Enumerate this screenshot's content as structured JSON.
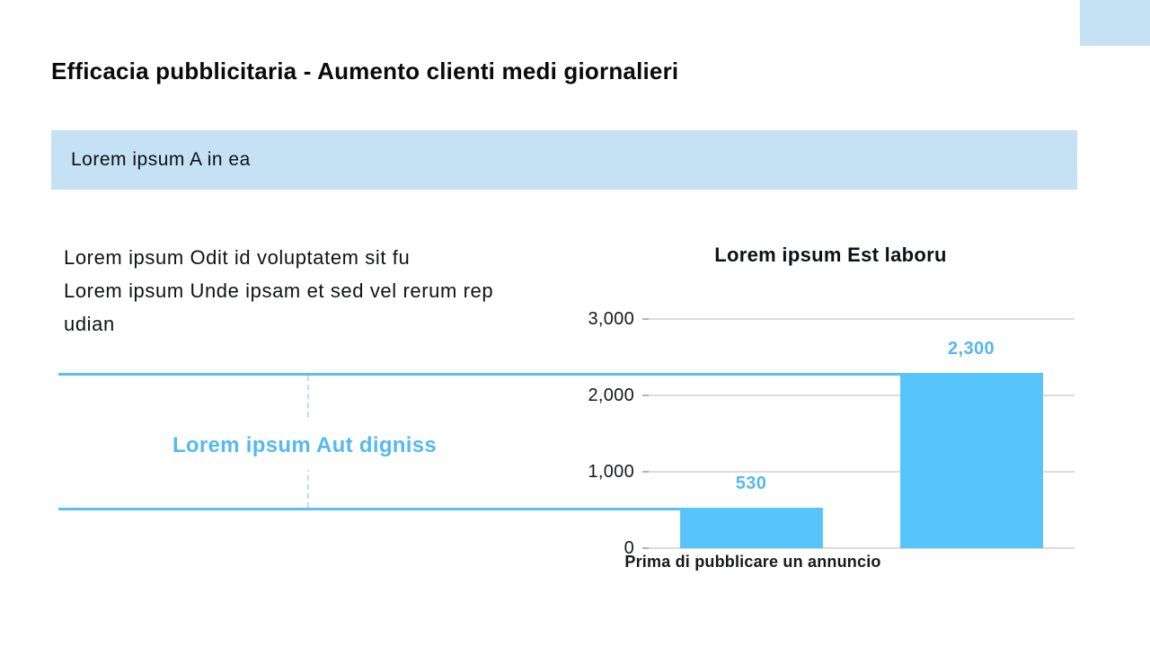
{
  "slide": {
    "title": "Efficacia pubblicitaria - Aumento clienti medi giornalieri",
    "banner": {
      "label": "Lorem ipsum A in ea",
      "bg_color": "#c5e2f4"
    },
    "corner_accent_color": "#c5e2f4",
    "description": {
      "lines": [
        "Lorem ipsum Odit id voluptatem sit fu",
        "Lorem ipsum Unde ipsam et sed vel rerum rep",
        "udian"
      ]
    },
    "annotation": {
      "label": "Lorem ipsum Aut digniss",
      "text_color": "#55baf0",
      "leader_line_color": "#5abff2",
      "dashed_line_color": "#b5e4f4"
    }
  },
  "chart_data": {
    "type": "bar",
    "title": "Lorem ipsum Est laboru",
    "categories": [
      "Prima di pubblicare un annuncio",
      ""
    ],
    "values": [
      530,
      2300
    ],
    "value_labels": [
      "530",
      "2,300"
    ],
    "ylim": [
      0,
      3000
    ],
    "yticks": [
      0,
      1000,
      2000,
      3000
    ],
    "ytick_labels": [
      "0",
      "1,000",
      "2,000",
      "3,000"
    ],
    "xlabel": "",
    "ylabel": "",
    "grid": true,
    "legend": false,
    "bar_color": "#57c5fa",
    "value_label_color": "#58b7ef",
    "gridline_color": "#dcdcdc"
  }
}
